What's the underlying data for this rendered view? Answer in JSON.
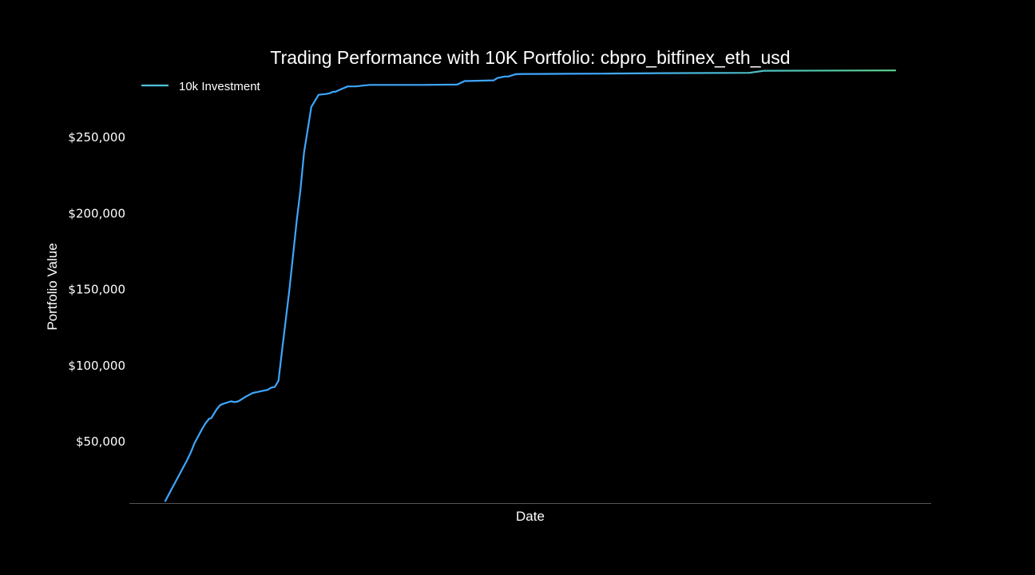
{
  "chart_data": {
    "type": "line",
    "title": "Trading Performance with 10K Portfolio: cbpro_bitfinex_eth_usd",
    "xlabel": "Date",
    "ylabel": "Portfolio Value",
    "x_tick_labels_shown": false,
    "ylim": [
      10000,
      292000
    ],
    "y_ticks": [
      {
        "value": 50000,
        "label": "$50,000"
      },
      {
        "value": 100000,
        "label": "$100,000"
      },
      {
        "value": 150000,
        "label": "$150,000"
      },
      {
        "value": 200000,
        "label": "$200,000"
      },
      {
        "value": 250000,
        "label": "$250,000"
      }
    ],
    "grid": false,
    "legend": {
      "placement": "top-left",
      "entries": [
        {
          "label": "10k Investment",
          "color": "#4fc3d9"
        }
      ]
    },
    "colors": {
      "background": "#000000",
      "text": "#ffffff",
      "axis": "#555555",
      "line_start": "#3ea6ff",
      "line_end": "#5ad68f"
    },
    "series": [
      {
        "name": "10k Investment",
        "x": [
          0,
          1,
          2,
          3,
          3.5,
          4,
          5,
          5.5,
          6,
          6.3,
          7,
          7.5,
          8,
          9,
          9.5,
          10,
          10.5,
          11,
          12,
          12.5,
          13,
          14,
          14.5,
          15,
          15.5,
          16,
          17,
          18,
          18.5,
          19,
          20,
          21,
          22,
          22.5,
          23,
          23.3,
          24,
          25,
          25.5,
          26,
          26.2,
          26.5,
          27,
          28,
          29,
          30,
          35,
          40,
          41,
          45,
          45.5,
          46.5,
          47,
          48,
          49,
          50,
          51,
          55,
          60,
          62,
          62.5,
          68,
          80,
          82,
          100
        ],
        "values": [
          11000,
          20000,
          29000,
          38000,
          43000,
          49000,
          58000,
          62000,
          65000,
          65500,
          71000,
          74000,
          75000,
          76500,
          76000,
          76500,
          78000,
          79500,
          82000,
          82500,
          83000,
          84000,
          85500,
          86000,
          90000,
          110000,
          150000,
          195000,
          215000,
          240000,
          270000,
          278000,
          278500,
          279000,
          280000,
          280000,
          281500,
          283500,
          283500,
          283500,
          283600,
          283700,
          284000,
          284500,
          284500,
          284500,
          284500,
          284700,
          287000,
          287500,
          289000,
          290000,
          290000,
          291500,
          291700,
          291700,
          291700,
          291800,
          291900,
          292000,
          292000,
          292200,
          292400,
          293800,
          294000
        ]
      }
    ]
  }
}
